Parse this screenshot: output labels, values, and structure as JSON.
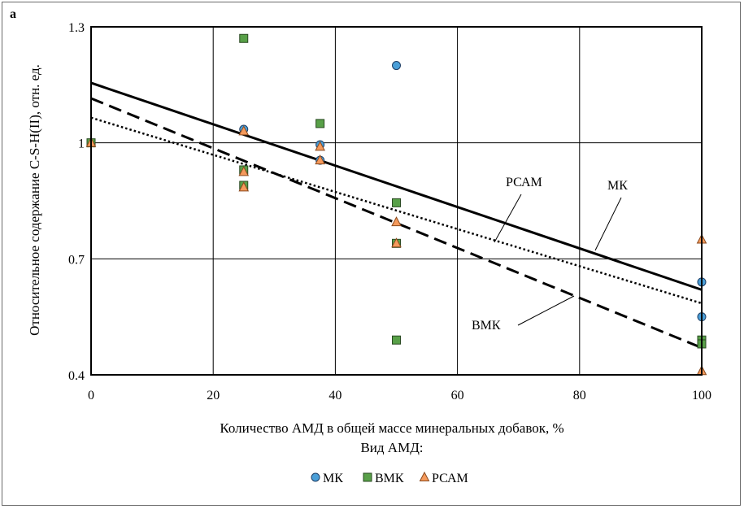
{
  "panel_label": "a",
  "chart_data": {
    "type": "scatter",
    "title": "",
    "xlabel": "Количество АМД в общей массе минеральных добавок, %",
    "ylabel": "Относительное содержание C-S-H(II), отн. ед.",
    "xlim": [
      0,
      100
    ],
    "ylim": [
      0.4,
      1.3
    ],
    "x_ticks": [
      "0",
      "20",
      "40",
      "60",
      "80",
      "100"
    ],
    "y_ticks": [
      "0.4",
      "0.7",
      "1",
      "1.3"
    ],
    "grid": true,
    "legend_title": "Вид АМД:",
    "legend_position": "bottom",
    "series": [
      {
        "name": "МК",
        "marker": "circle",
        "color": "#4a9fd8",
        "points": [
          [
            0,
            1.0
          ],
          [
            25,
            1.035
          ],
          [
            37.5,
            0.995
          ],
          [
            37.5,
            0.955
          ],
          [
            50,
            1.2
          ],
          [
            100,
            0.64
          ],
          [
            100,
            0.55
          ]
        ],
        "trend": {
          "style": "solid",
          "start": [
            0,
            1.155
          ],
          "end": [
            100,
            0.62
          ]
        }
      },
      {
        "name": "ВМК",
        "marker": "square",
        "color": "#58a048",
        "points": [
          [
            0,
            1.0
          ],
          [
            25,
            1.27
          ],
          [
            25,
            0.93
          ],
          [
            25,
            0.89
          ],
          [
            37.5,
            1.05
          ],
          [
            50,
            0.845
          ],
          [
            50,
            0.74
          ],
          [
            50,
            0.49
          ],
          [
            100,
            0.49
          ],
          [
            100,
            0.48
          ]
        ],
        "trend": {
          "style": "dashed",
          "start": [
            0,
            1.115
          ],
          "end": [
            100,
            0.47
          ]
        }
      },
      {
        "name": "РСАМ",
        "marker": "triangle",
        "color": "#f59a5c",
        "points": [
          [
            0,
            1.0
          ],
          [
            25,
            1.03
          ],
          [
            25,
            0.925
          ],
          [
            25,
            0.885
          ],
          [
            37.5,
            0.99
          ],
          [
            37.5,
            0.955
          ],
          [
            50,
            0.795
          ],
          [
            50,
            0.74
          ],
          [
            100,
            0.75
          ],
          [
            100,
            0.41
          ]
        ],
        "trend": {
          "style": "dotted",
          "start": [
            0,
            1.065
          ],
          "end": [
            100,
            0.585
          ]
        }
      }
    ],
    "annotations": [
      {
        "text": "РСАМ",
        "target": "РСАМ"
      },
      {
        "text": "МК",
        "target": "МК"
      },
      {
        "text": "ВМК",
        "target": "ВМК"
      }
    ]
  }
}
